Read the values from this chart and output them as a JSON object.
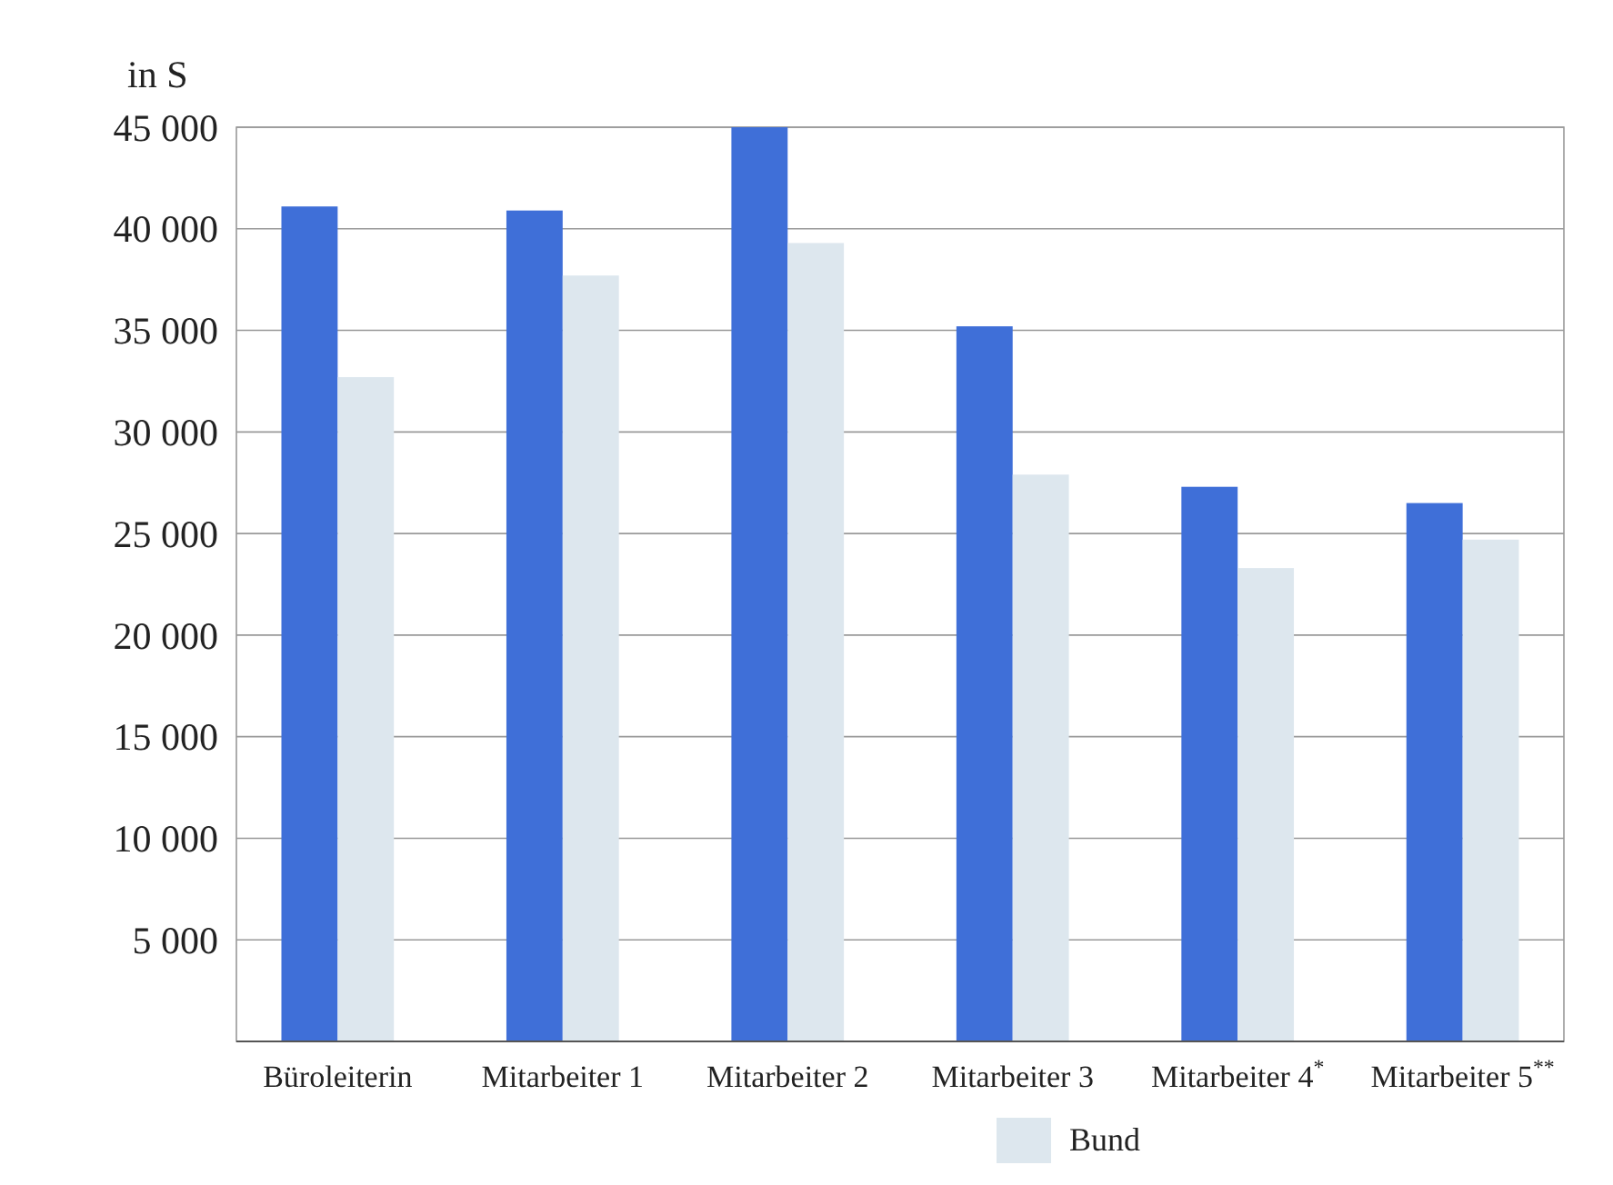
{
  "chart_data": {
    "type": "bar",
    "ylabel": "in S",
    "categories": [
      "Büroleiterin",
      "Mitarbeiter 1",
      "Mitarbeiter 2",
      "Mitarbeiter 3",
      "Mitarbeiter 4$^{*}$",
      "Mitarbeiter 5$^{**}$"
    ],
    "series": [
      {
        "color": "#3f6fd8",
        "values": [
          41100,
          40900,
          45000,
          35200,
          27300,
          26500
        ]
      },
      {
        "name": "Bund",
        "color": "#dde7ee",
        "values": [
          32700,
          37700,
          39300,
          27900,
          23300,
          24700
        ]
      }
    ],
    "ylim": [
      0,
      45000
    ],
    "yticks": [
      {
        "value": 0,
        "label": null
      },
      {
        "value": 5000,
        "label": "5 000"
      },
      {
        "value": 10000,
        "label": "10 000"
      },
      {
        "value": 15000,
        "label": "15 000"
      },
      {
        "value": 20000,
        "label": "20 000"
      },
      {
        "value": 25000,
        "label": "25 000"
      },
      {
        "value": 30000,
        "label": "30 000"
      },
      {
        "value": 35000,
        "label": "35 000"
      },
      {
        "value": 40000,
        "label": "40 000"
      },
      {
        "value": 45000,
        "label": "45 000"
      }
    ],
    "grid": "y",
    "legend": "bottom"
  }
}
